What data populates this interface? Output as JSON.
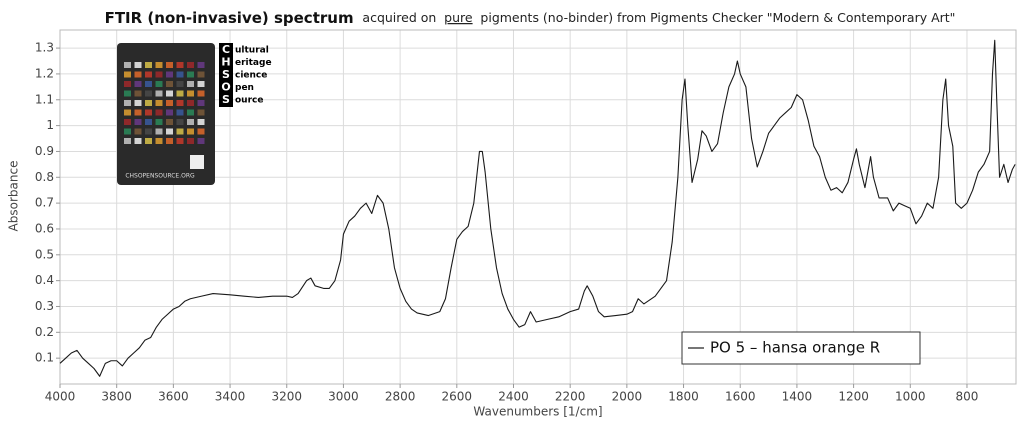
{
  "chart_data": {
    "type": "line",
    "title": "FTIR (non-invasive) spectrum",
    "subtitle": [
      "acquired on",
      "pure",
      "pigments (no-binder) from Pigments Checker \"Modern & Contemporary Art\""
    ],
    "x_label": "Wavenumbers [1/cm]",
    "y_label": "Absorbance",
    "xlim": [
      4000,
      627
    ],
    "ylim": [
      0,
      1.37
    ],
    "xticks": [
      4000,
      3800,
      3600,
      3400,
      3200,
      3000,
      2800,
      2600,
      2400,
      2200,
      2000,
      1800,
      1600,
      1400,
      1200,
      1000,
      800
    ],
    "yticks": [
      0.1,
      0.2,
      0.3,
      0.4,
      0.5,
      0.6,
      0.7,
      0.8,
      0.9,
      1,
      1.1,
      1.2,
      1.3
    ],
    "grid": true,
    "legend_position": "lower right",
    "x": [
      4000,
      3980,
      3960,
      3940,
      3920,
      3900,
      3880,
      3860,
      3840,
      3820,
      3800,
      3780,
      3760,
      3740,
      3720,
      3700,
      3680,
      3660,
      3640,
      3620,
      3600,
      3580,
      3560,
      3540,
      3500,
      3460,
      3400,
      3350,
      3300,
      3250,
      3200,
      3180,
      3160,
      3130,
      3115,
      3100,
      3070,
      3050,
      3030,
      3010,
      3000,
      2980,
      2960,
      2940,
      2920,
      2900,
      2880,
      2860,
      2840,
      2820,
      2800,
      2780,
      2760,
      2740,
      2700,
      2660,
      2640,
      2620,
      2600,
      2580,
      2560,
      2540,
      2520,
      2510,
      2500,
      2480,
      2460,
      2440,
      2420,
      2400,
      2380,
      2360,
      2340,
      2320,
      2280,
      2240,
      2200,
      2170,
      2150,
      2140,
      2120,
      2100,
      2080,
      2040,
      2000,
      1980,
      1960,
      1940,
      1900,
      1860,
      1840,
      1820,
      1805,
      1795,
      1785,
      1770,
      1750,
      1735,
      1720,
      1700,
      1680,
      1660,
      1640,
      1620,
      1610,
      1600,
      1580,
      1560,
      1540,
      1520,
      1500,
      1480,
      1460,
      1440,
      1420,
      1400,
      1380,
      1360,
      1340,
      1320,
      1300,
      1280,
      1260,
      1240,
      1220,
      1200,
      1190,
      1180,
      1160,
      1140,
      1130,
      1110,
      1080,
      1060,
      1040,
      1020,
      1000,
      980,
      960,
      940,
      920,
      900,
      885,
      875,
      865,
      850,
      840,
      820,
      800,
      780,
      760,
      740,
      720,
      710,
      702,
      695,
      685,
      670,
      655,
      640,
      630
    ],
    "series": [
      {
        "name": "PO 5 – hansa orange R",
        "color": "#1a1a1a",
        "values": [
          0.08,
          0.1,
          0.12,
          0.13,
          0.1,
          0.08,
          0.06,
          0.03,
          0.08,
          0.09,
          0.09,
          0.07,
          0.1,
          0.12,
          0.14,
          0.17,
          0.18,
          0.22,
          0.25,
          0.27,
          0.29,
          0.3,
          0.32,
          0.33,
          0.34,
          0.35,
          0.345,
          0.34,
          0.335,
          0.34,
          0.34,
          0.335,
          0.35,
          0.4,
          0.41,
          0.38,
          0.37,
          0.37,
          0.4,
          0.48,
          0.58,
          0.63,
          0.65,
          0.68,
          0.7,
          0.66,
          0.73,
          0.7,
          0.6,
          0.45,
          0.37,
          0.32,
          0.29,
          0.275,
          0.265,
          0.28,
          0.33,
          0.45,
          0.56,
          0.59,
          0.61,
          0.7,
          0.9,
          0.9,
          0.82,
          0.6,
          0.45,
          0.35,
          0.29,
          0.25,
          0.22,
          0.23,
          0.28,
          0.24,
          0.25,
          0.26,
          0.28,
          0.29,
          0.36,
          0.38,
          0.34,
          0.28,
          0.26,
          0.265,
          0.27,
          0.28,
          0.33,
          0.31,
          0.34,
          0.4,
          0.55,
          0.8,
          1.1,
          1.18,
          1.0,
          0.78,
          0.87,
          0.98,
          0.96,
          0.9,
          0.93,
          1.05,
          1.15,
          1.2,
          1.25,
          1.2,
          1.15,
          0.95,
          0.84,
          0.9,
          0.97,
          1.0,
          1.03,
          1.05,
          1.07,
          1.12,
          1.1,
          1.02,
          0.92,
          0.88,
          0.8,
          0.75,
          0.76,
          0.74,
          0.78,
          0.87,
          0.91,
          0.85,
          0.76,
          0.88,
          0.8,
          0.72,
          0.72,
          0.67,
          0.7,
          0.69,
          0.68,
          0.62,
          0.65,
          0.7,
          0.68,
          0.8,
          1.1,
          1.18,
          1.0,
          0.92,
          0.7,
          0.68,
          0.7,
          0.75,
          0.82,
          0.85,
          0.9,
          1.2,
          1.33,
          1.1,
          0.8,
          0.85,
          0.78,
          0.83,
          0.85
        ]
      }
    ]
  },
  "inset": {
    "letters": [
      "C",
      "H",
      "S",
      "O",
      "S"
    ],
    "words": [
      "ultural",
      "eritage",
      "cience",
      "pen",
      "ource"
    ],
    "card_url": "CHSOPENSOURCE.ORG"
  }
}
